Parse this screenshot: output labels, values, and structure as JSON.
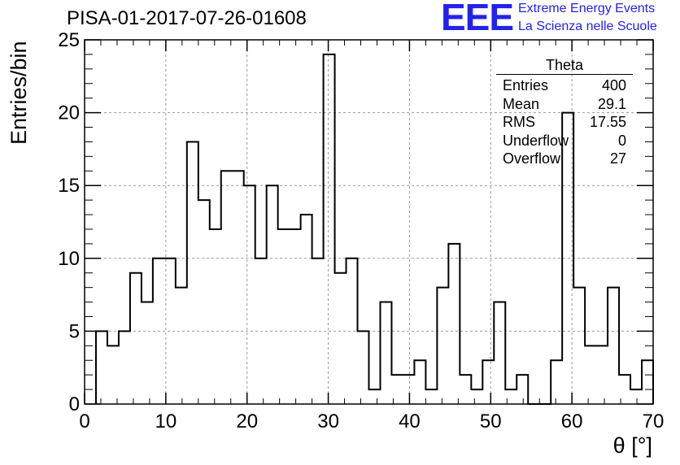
{
  "title": "PISA-01-2017-07-26-01608",
  "brand": {
    "logo": "EEE",
    "line1": "Extreme Energy Events",
    "line2": "La Scienza nelle Scuole"
  },
  "stats": {
    "title": "Theta",
    "rows": [
      {
        "label": "Entries",
        "value": "400"
      },
      {
        "label": "Mean",
        "value": "29.1"
      },
      {
        "label": "RMS",
        "value": "17.55"
      },
      {
        "label": "Underflow",
        "value": "0"
      },
      {
        "label": "Overflow",
        "value": "27"
      }
    ]
  },
  "colors": {
    "line": "#000000",
    "grid": "#999999",
    "brand": "#2222ee"
  },
  "chart_data": {
    "type": "bar",
    "style": "step-histogram",
    "title": "PISA-01-2017-07-26-01608",
    "xlabel": "θ [°]",
    "ylabel": "Entries/bin",
    "xlim": [
      0,
      70
    ],
    "ylim": [
      0,
      25
    ],
    "bin_width": 1.4,
    "bin_edges_start": 1.4,
    "xticks": [
      0,
      10,
      20,
      30,
      40,
      50,
      60,
      70
    ],
    "yticks": [
      0,
      5,
      10,
      15,
      20,
      25
    ],
    "grid": true,
    "values": [
      5,
      4,
      5,
      9,
      7,
      10,
      10,
      8,
      18,
      14,
      12,
      16,
      16,
      15,
      10,
      15,
      12,
      12,
      13,
      10,
      24,
      9,
      10,
      5,
      1,
      7,
      2,
      2,
      3,
      1,
      8,
      11,
      2,
      1,
      3,
      7,
      1,
      2,
      0,
      0,
      3,
      20,
      8,
      4,
      4,
      8,
      2,
      1,
      3
    ]
  }
}
